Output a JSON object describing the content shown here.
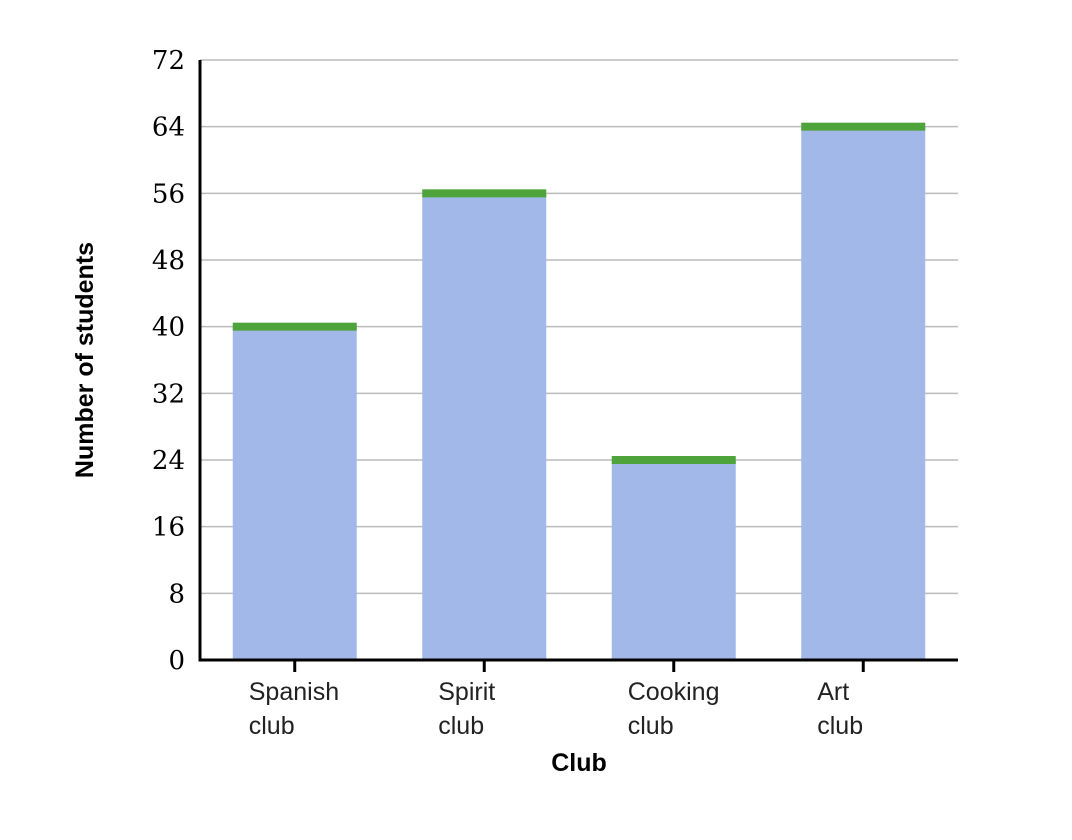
{
  "chart_data": {
    "type": "bar",
    "categories": [
      "Spanish club",
      "Spirit club",
      "Cooking club",
      "Art club"
    ],
    "category_lines": [
      [
        "Spanish",
        "club"
      ],
      [
        "Spirit",
        "club"
      ],
      [
        "Cooking",
        "club"
      ],
      [
        "Art",
        "club"
      ]
    ],
    "values": [
      40,
      56,
      24,
      64
    ],
    "xlabel": "Club",
    "ylabel": "Number of students",
    "ylim": [
      0,
      72
    ],
    "yticks": [
      "0",
      "8",
      "16",
      "24",
      "32",
      "40",
      "48",
      "56",
      "64",
      "72"
    ],
    "grid": true,
    "colors": {
      "bar": "#a1b8e8",
      "bar_top": "#4ea43b",
      "grid": "#bbbbbb",
      "axis": "#000000"
    }
  }
}
